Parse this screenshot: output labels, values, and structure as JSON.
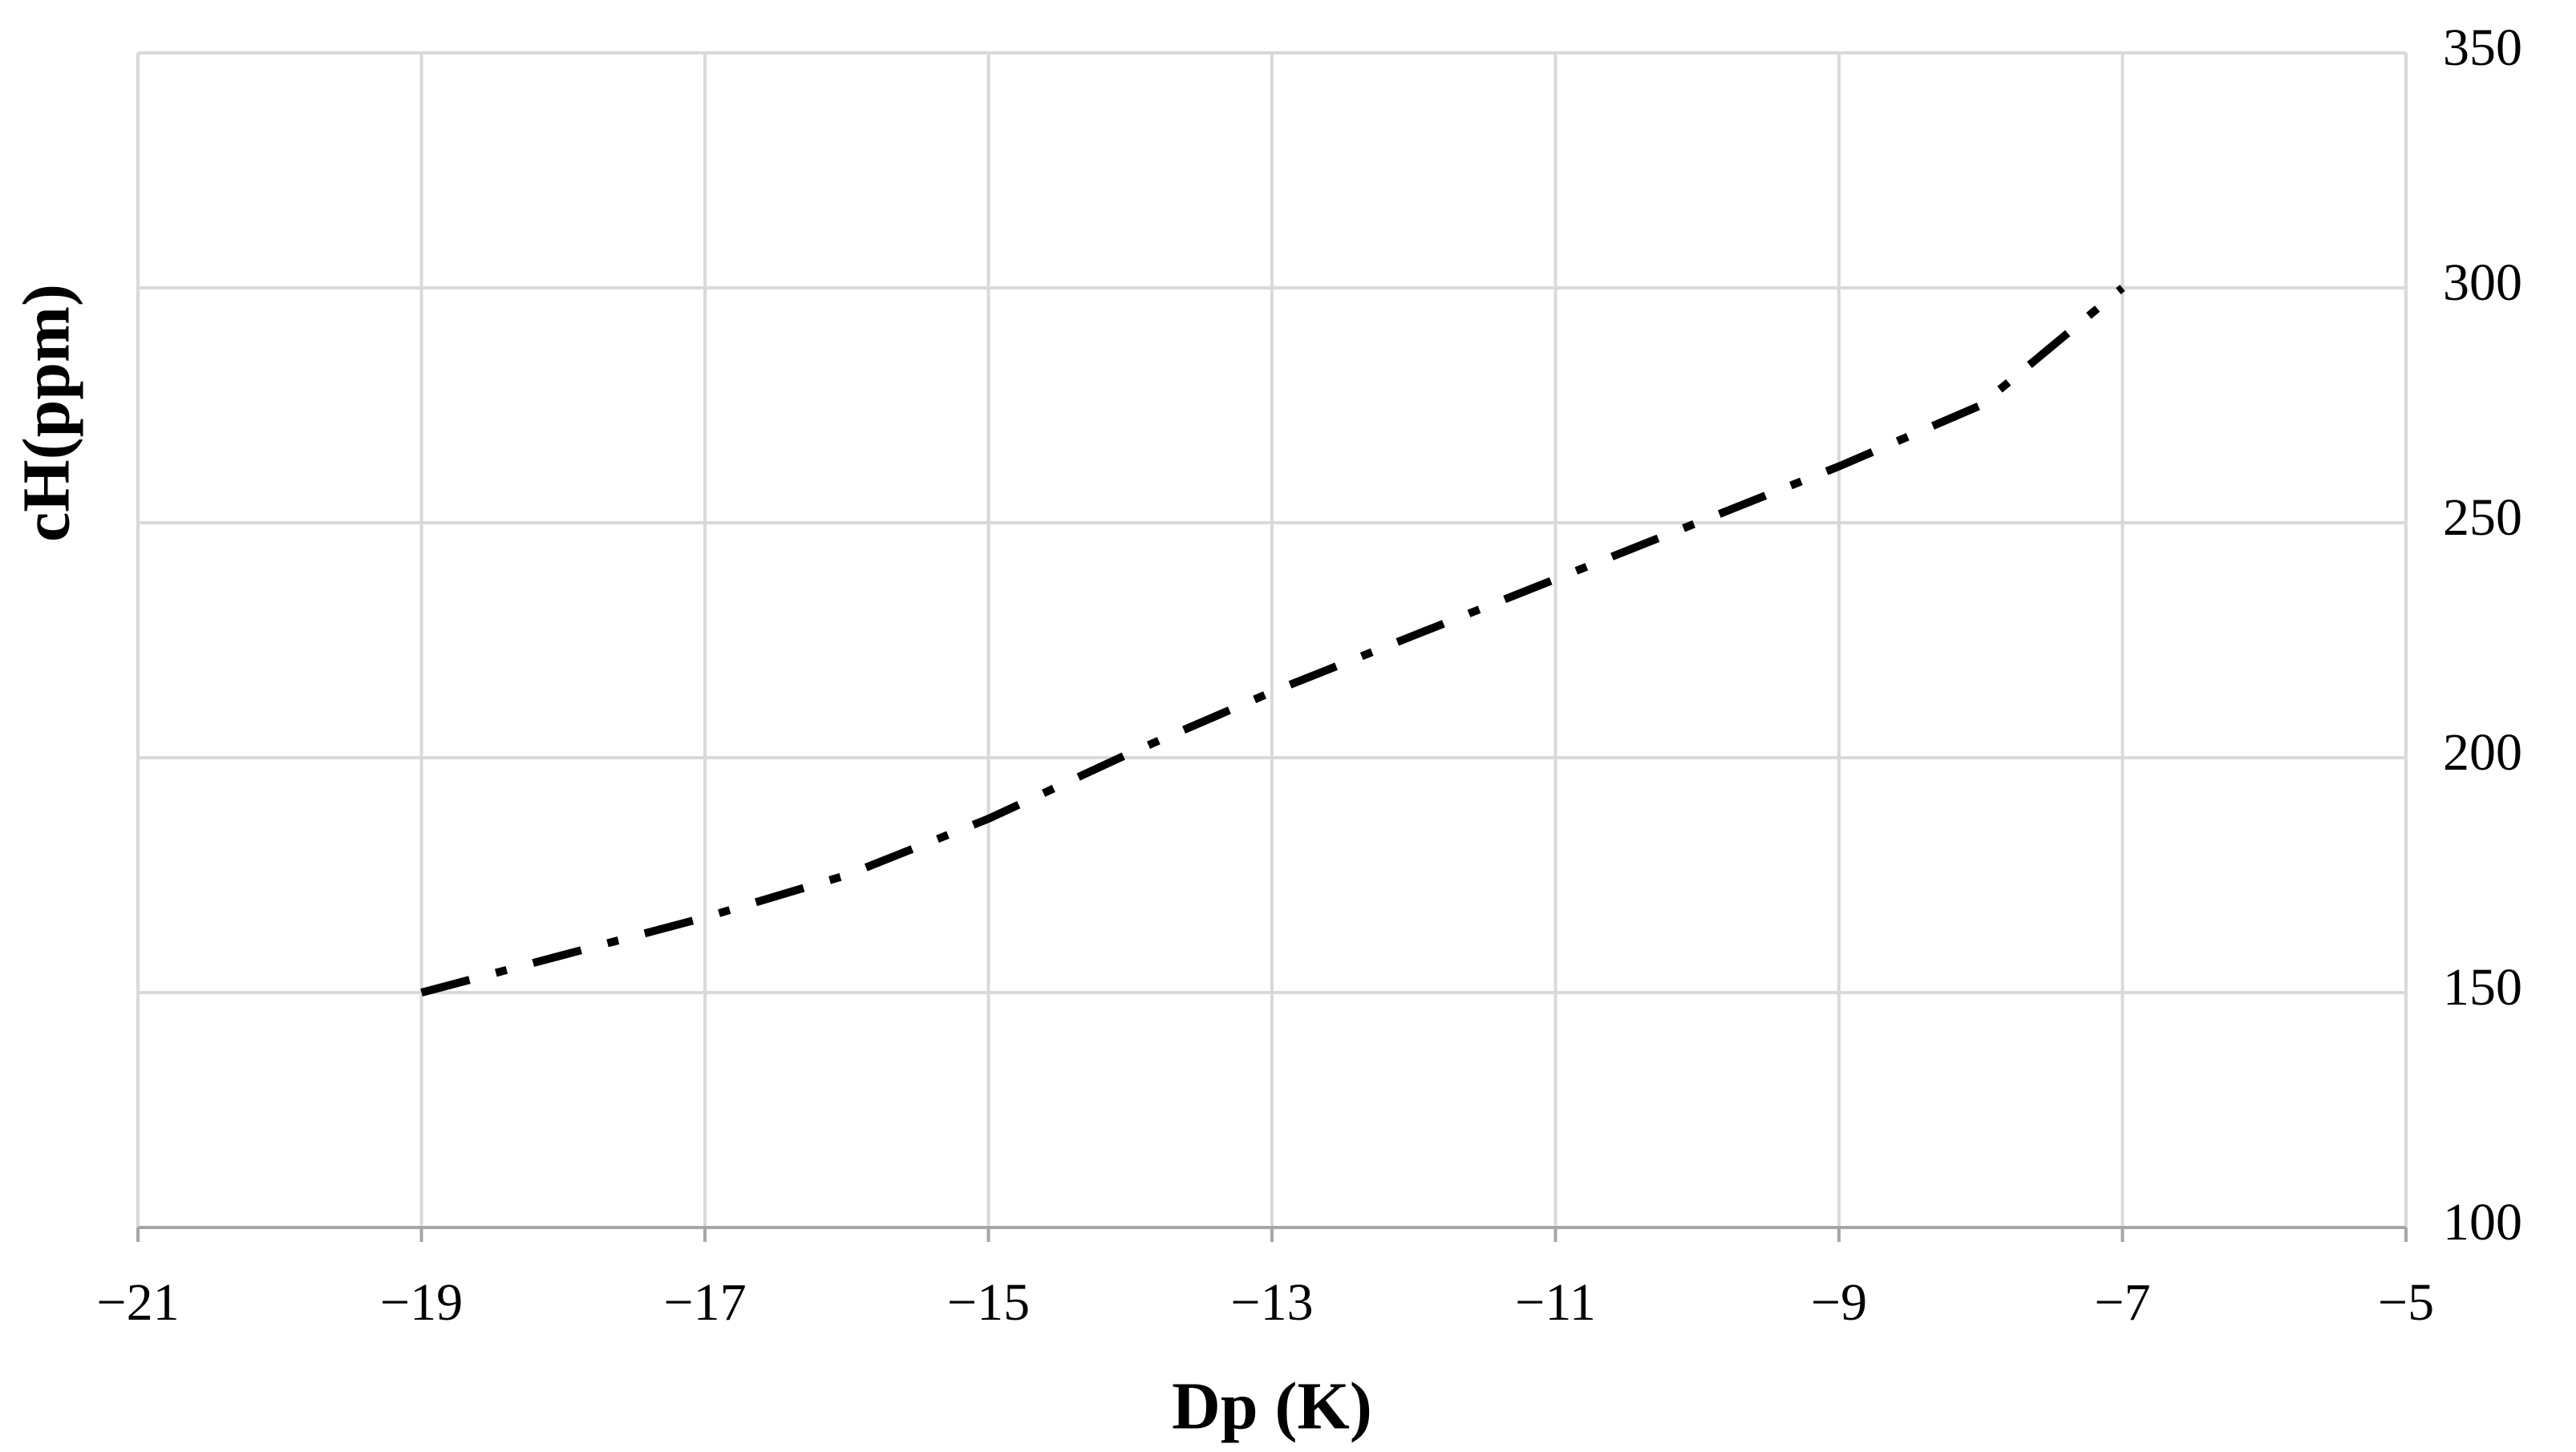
{
  "chart_data": {
    "type": "line",
    "x_label": "Dp (K)",
    "y_label": "cH(ppm)",
    "x": [
      -19,
      -18,
      -17,
      -16,
      -15,
      -14,
      -13,
      -12,
      -11,
      -10,
      -9,
      -8,
      -7
    ],
    "series": [
      {
        "color": "#000000",
        "line_style": "dash-dot",
        "values": [
          150,
          158,
          166,
          175,
          187,
          201,
          214,
          226,
          238,
          250,
          262,
          275,
          300
        ]
      }
    ],
    "xlim": [
      -21,
      -5
    ],
    "xticks": [
      {
        "value": -21,
        "label": "−21"
      },
      {
        "value": -19,
        "label": "−19"
      },
      {
        "value": -17,
        "label": "−17"
      },
      {
        "value": -15,
        "label": "−15"
      },
      {
        "value": -13,
        "label": "−13"
      },
      {
        "value": -11,
        "label": "−11"
      },
      {
        "value": -9,
        "label": "−9"
      },
      {
        "value": -7,
        "label": "−7"
      },
      {
        "value": -5,
        "label": "−5"
      }
    ],
    "ylim": [
      100,
      350
    ],
    "yticks": [
      100,
      150,
      200,
      250,
      300,
      350
    ],
    "y_axis_side": "right",
    "grid": true
  }
}
